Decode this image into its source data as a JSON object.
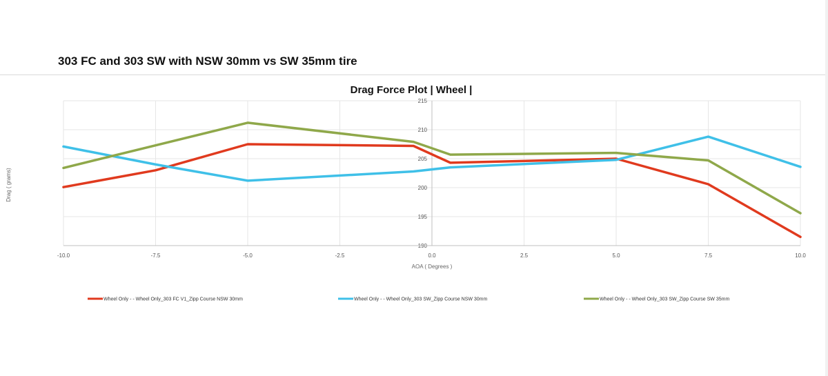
{
  "page": {
    "title": "303 FC and 303 SW with NSW 30mm vs SW 35mm tire"
  },
  "chart_data": {
    "type": "line",
    "title": "Drag Force Plot | Wheel |",
    "xlabel": "AOA ( Degrees )",
    "ylabel": "Drag ( grams)",
    "xlim": [
      -10.0,
      10.0
    ],
    "ylim": [
      190,
      215
    ],
    "xticks": [
      "-10.0",
      "-7.5",
      "-5.0",
      "-2.5",
      "0.0",
      "2.5",
      "5.0",
      "7.5",
      "10.0"
    ],
    "yticks": [
      "190",
      "195",
      "200",
      "205",
      "210",
      "215"
    ],
    "grid": true,
    "legend_position": "bottom",
    "series": [
      {
        "name": "Wheel Only - - Wheel Only_303 FC V1_Zipp Course NSW 30mm",
        "color": "#e03a1e",
        "x": [
          -10.0,
          -7.5,
          -5.0,
          -0.5,
          0.5,
          5.0,
          7.5,
          10.0
        ],
        "y": [
          200.1,
          203.0,
          207.5,
          207.2,
          204.3,
          205.0,
          200.6,
          191.5
        ]
      },
      {
        "name": "Wheel Only - - Wheel Only_303 SW_Zipp Course NSW 30mm",
        "color": "#3fc0e8",
        "x": [
          -10.0,
          -7.5,
          -5.0,
          -0.5,
          0.5,
          5.0,
          7.5,
          10.0
        ],
        "y": [
          207.1,
          204.0,
          201.2,
          202.8,
          203.5,
          204.8,
          208.8,
          203.6
        ]
      },
      {
        "name": "Wheel Only - - Wheel Only_303 SW_Zipp Course SW 35mm",
        "color": "#8fa84a",
        "x": [
          -10.0,
          -7.5,
          -5.0,
          -0.5,
          0.5,
          5.0,
          7.5,
          10.0
        ],
        "y": [
          203.4,
          207.3,
          211.2,
          207.9,
          205.7,
          206.0,
          204.7,
          195.6
        ]
      }
    ]
  }
}
